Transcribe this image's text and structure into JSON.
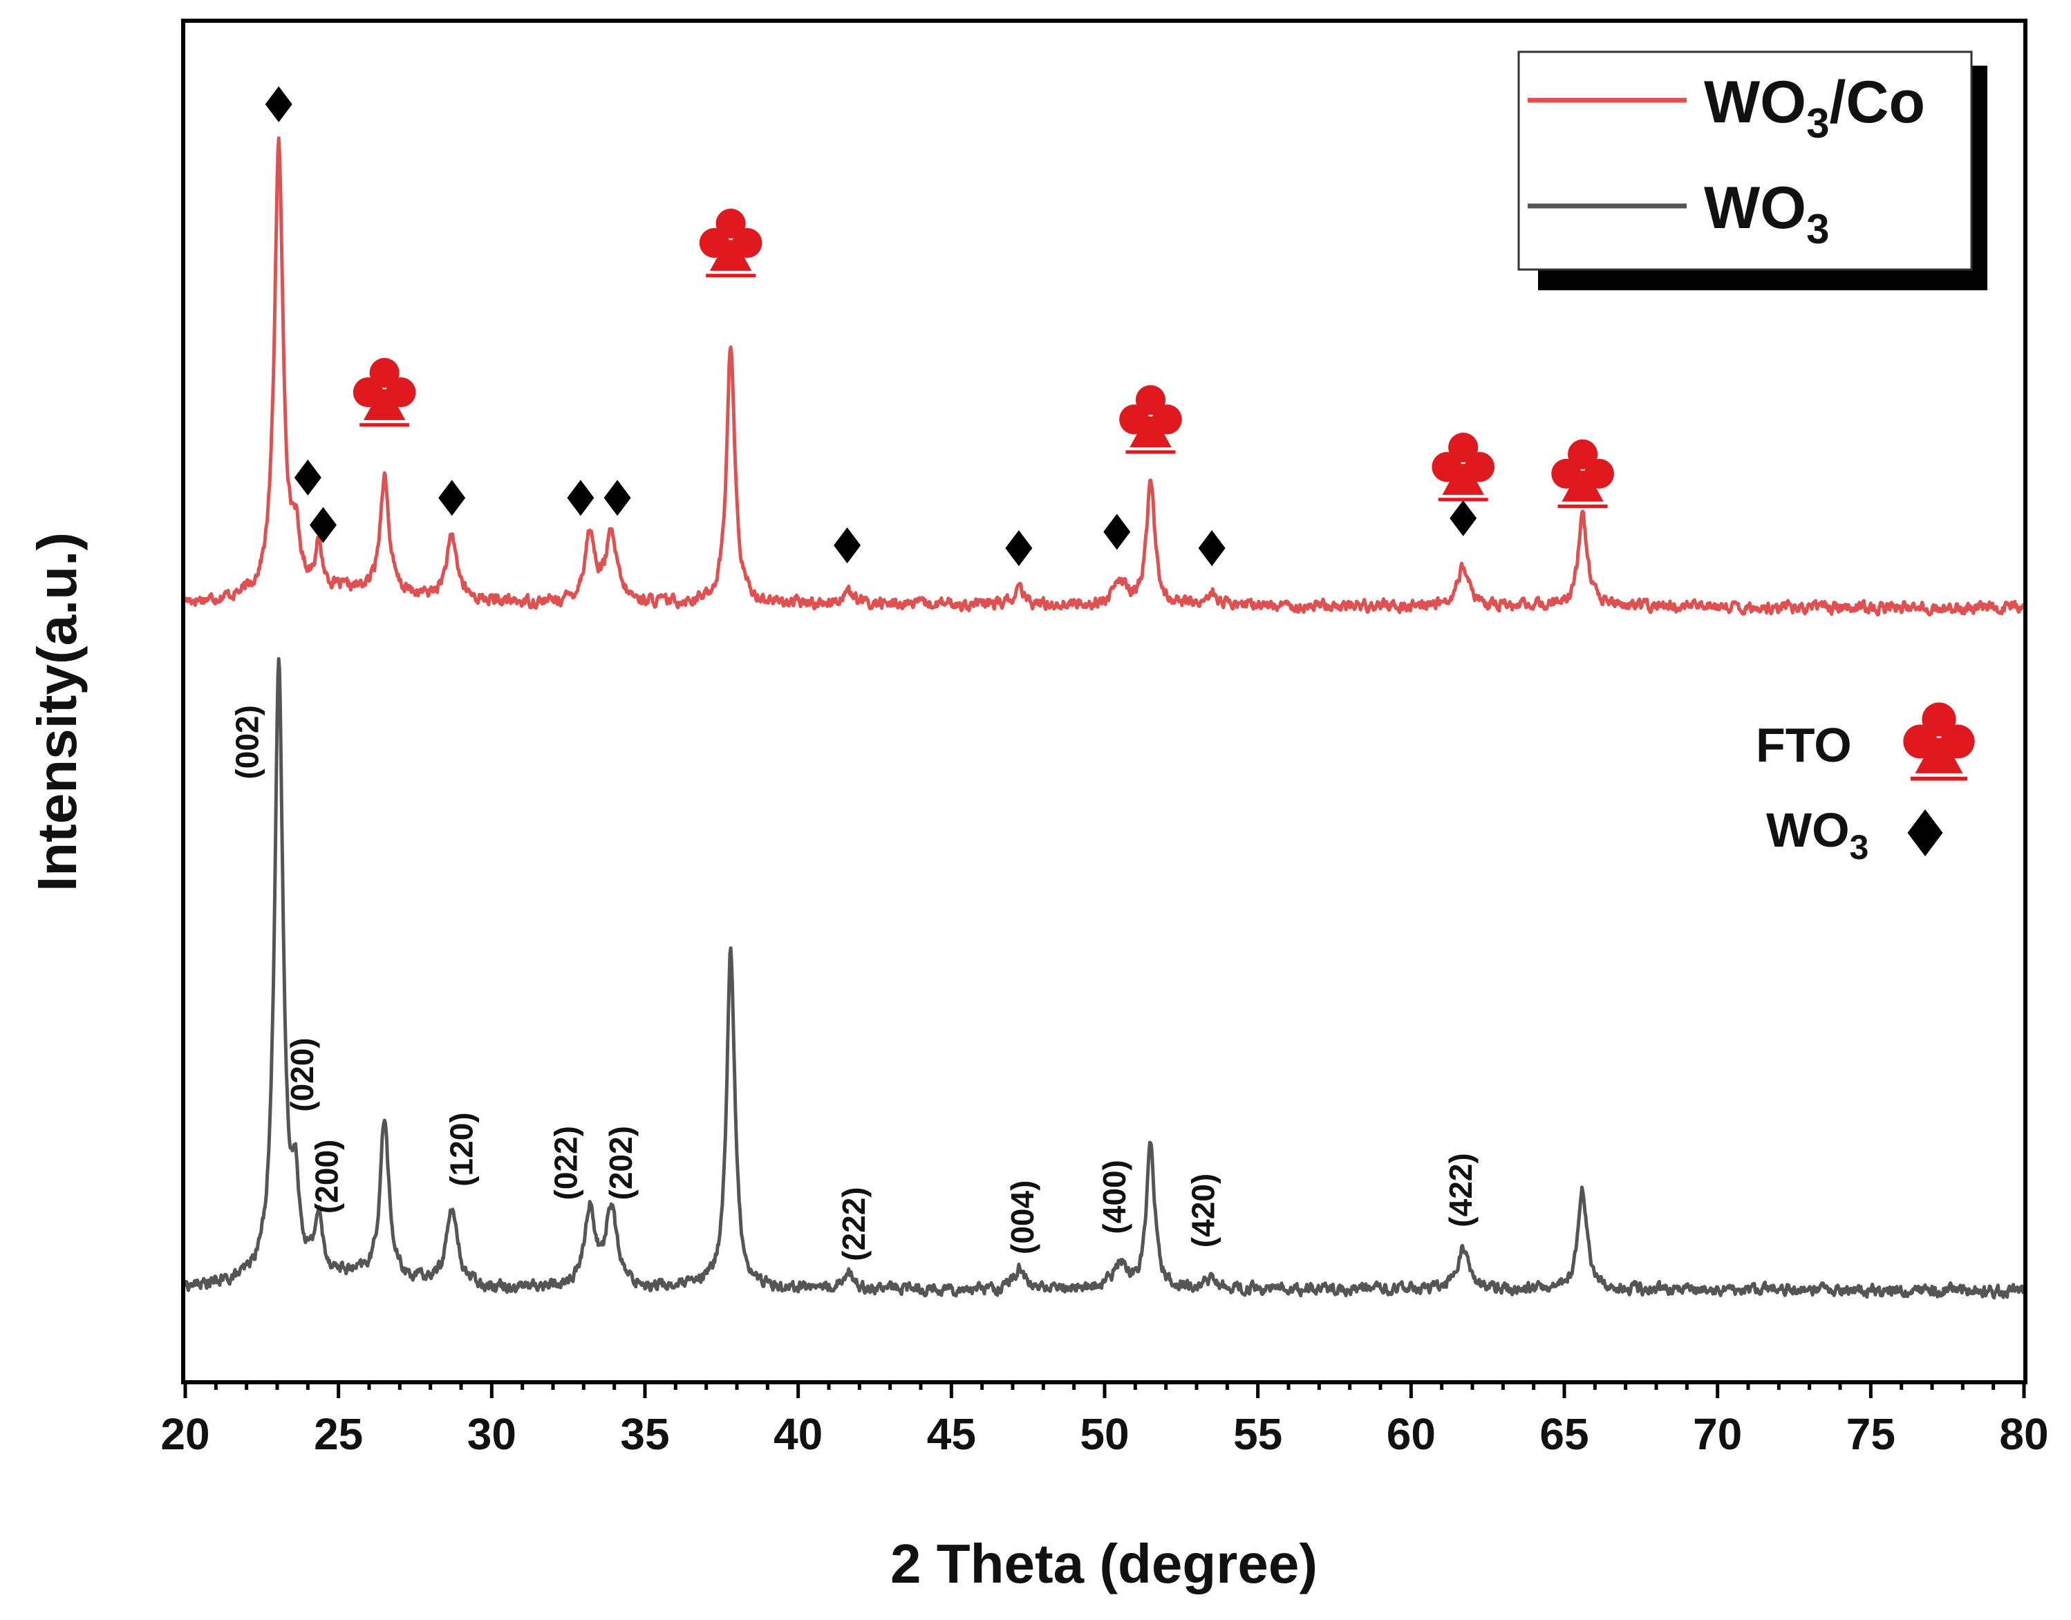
{
  "chart_data": {
    "type": "line",
    "title": "",
    "xlabel": "2 Theta (degree)",
    "ylabel": "Intensity(a.u.)",
    "xlim": [
      20,
      80
    ],
    "ylim": [
      0,
      100
    ],
    "x_ticks": [
      "20",
      "25",
      "30",
      "35",
      "40",
      "45",
      "50",
      "55",
      "60",
      "65",
      "70",
      "75",
      "80"
    ],
    "colors": {
      "wo3_co": "#e05050",
      "wo3": "#555555",
      "fto_marker": "#e0191f",
      "wo3_marker": "#000000",
      "frame": "#000000"
    },
    "series": [
      {
        "name": "WO3/Co",
        "legend_main": "WO",
        "legend_sub": "3",
        "legend_suffix": "/Co",
        "baseline": 57.3,
        "baseline_end": 56.9,
        "peaks": [
          {
            "x": 23.05,
            "h": 33.0,
            "w": 0.17
          },
          {
            "x": 23.6,
            "h": 3.5,
            "w": 0.15
          },
          {
            "x": 24.35,
            "h": 3.0,
            "w": 0.15
          },
          {
            "x": 26.5,
            "h": 8.7,
            "w": 0.17
          },
          {
            "x": 28.7,
            "h": 4.5,
            "w": 0.22
          },
          {
            "x": 33.2,
            "h": 5.0,
            "w": 0.2
          },
          {
            "x": 33.9,
            "h": 4.8,
            "w": 0.22
          },
          {
            "x": 37.8,
            "h": 19.0,
            "w": 0.16
          },
          {
            "x": 41.6,
            "h": 1.0,
            "w": 0.2
          },
          {
            "x": 47.2,
            "h": 1.1,
            "w": 0.18
          },
          {
            "x": 50.5,
            "h": 1.6,
            "w": 0.25
          },
          {
            "x": 51.5,
            "h": 9.2,
            "w": 0.16
          },
          {
            "x": 53.5,
            "h": 0.8,
            "w": 0.2
          },
          {
            "x": 61.7,
            "h": 2.8,
            "w": 0.22
          },
          {
            "x": 65.6,
            "h": 6.6,
            "w": 0.18
          }
        ]
      },
      {
        "name": "WO3",
        "legend_main": "WO",
        "legend_sub": "3",
        "legend_suffix": "",
        "baseline": 6.8,
        "baseline_end": 6.6,
        "peaks": [
          {
            "x": 23.05,
            "h": 45.0,
            "w": 0.17
          },
          {
            "x": 23.6,
            "h": 5.5,
            "w": 0.15
          },
          {
            "x": 24.35,
            "h": 4.0,
            "w": 0.15
          },
          {
            "x": 26.5,
            "h": 11.8,
            "w": 0.17
          },
          {
            "x": 28.7,
            "h": 5.5,
            "w": 0.22
          },
          {
            "x": 33.2,
            "h": 5.8,
            "w": 0.2
          },
          {
            "x": 33.9,
            "h": 5.8,
            "w": 0.22
          },
          {
            "x": 37.8,
            "h": 25.0,
            "w": 0.16
          },
          {
            "x": 41.6,
            "h": 1.2,
            "w": 0.2
          },
          {
            "x": 47.2,
            "h": 1.5,
            "w": 0.18
          },
          {
            "x": 50.5,
            "h": 1.8,
            "w": 0.25
          },
          {
            "x": 51.5,
            "h": 11.0,
            "w": 0.16
          },
          {
            "x": 53.5,
            "h": 0.8,
            "w": 0.2
          },
          {
            "x": 61.7,
            "h": 3.2,
            "w": 0.22
          },
          {
            "x": 65.6,
            "h": 7.3,
            "w": 0.18
          }
        ]
      }
    ],
    "fto_markers": [
      {
        "x": 26.5,
        "y": 73
      },
      {
        "x": 37.8,
        "y": 84
      },
      {
        "x": 51.5,
        "y": 71
      },
      {
        "x": 61.7,
        "y": 67.5
      },
      {
        "x": 65.6,
        "y": 67
      }
    ],
    "wo3_markers": [
      {
        "x": 23.05,
        "y": 94
      },
      {
        "x": 24.0,
        "y": 66.5
      },
      {
        "x": 24.5,
        "y": 63
      },
      {
        "x": 28.7,
        "y": 65
      },
      {
        "x": 32.9,
        "y": 65
      },
      {
        "x": 34.1,
        "y": 65
      },
      {
        "x": 41.6,
        "y": 61.5
      },
      {
        "x": 47.2,
        "y": 61.3
      },
      {
        "x": 50.4,
        "y": 62.5
      },
      {
        "x": 53.5,
        "y": 61.3
      },
      {
        "x": 61.7,
        "y": 63.5
      }
    ],
    "peak_labels": [
      {
        "x": 22.1,
        "y": 47,
        "text": "(002)"
      },
      {
        "x": 23.9,
        "y": 22.5,
        "text": "(020)"
      },
      {
        "x": 24.7,
        "y": 15,
        "text": "(200)"
      },
      {
        "x": 29.1,
        "y": 17,
        "text": "(120)"
      },
      {
        "x": 32.5,
        "y": 16,
        "text": "(022)"
      },
      {
        "x": 34.3,
        "y": 16,
        "text": "(202)"
      },
      {
        "x": 41.9,
        "y": 11.5,
        "text": "(222)"
      },
      {
        "x": 47.4,
        "y": 12,
        "text": "(004)"
      },
      {
        "x": 50.4,
        "y": 13.5,
        "text": "(400)"
      },
      {
        "x": 53.3,
        "y": 12.5,
        "text": "(420)"
      },
      {
        "x": 61.7,
        "y": 14,
        "text": "(422)"
      }
    ],
    "legend": {
      "position": "top-right",
      "entries": [
        "WO3/Co",
        "WO3"
      ]
    },
    "symbol_key": [
      {
        "label": "FTO",
        "label_sub": "",
        "symbol": "club"
      },
      {
        "label": "WO",
        "label_sub": "3",
        "symbol": "diamond"
      }
    ],
    "grid": false
  }
}
